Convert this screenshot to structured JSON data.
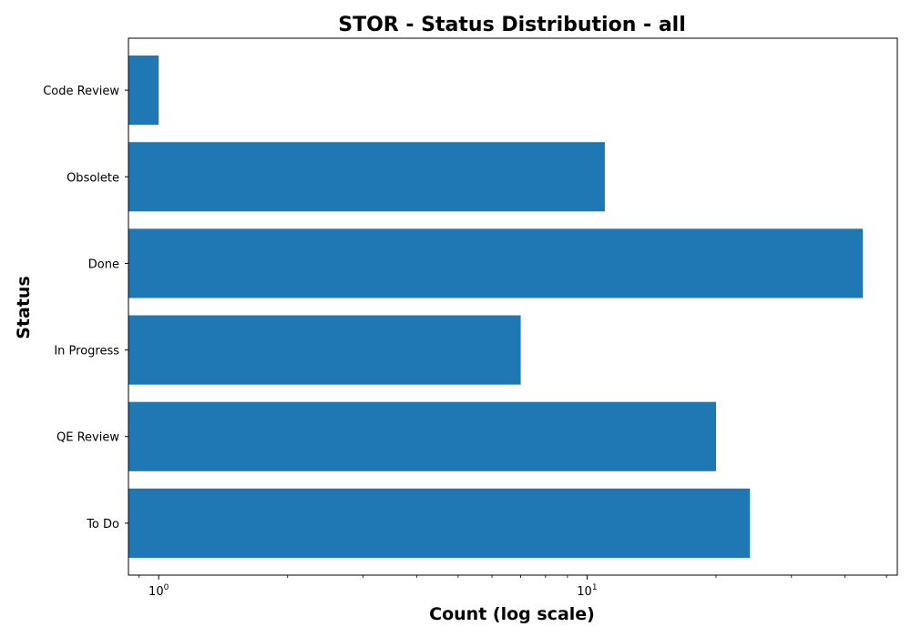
{
  "chart_data": {
    "type": "bar",
    "orientation": "horizontal",
    "title": "STOR - Status Distribution - all",
    "xlabel": "Count (log scale)",
    "ylabel": "Status",
    "x_scale": "log",
    "xlim": [
      0.85,
      53
    ],
    "x_ticks": [
      {
        "base": "10",
        "exp": "0",
        "value": 1
      },
      {
        "base": "10",
        "exp": "1",
        "value": 10
      }
    ],
    "categories": [
      "Code Review",
      "Obsolete",
      "Done",
      "In Progress",
      "QE Review",
      "To Do"
    ],
    "values": [
      1,
      11,
      44,
      7,
      20,
      24
    ],
    "bar_color": "#1f77b4",
    "grid": false,
    "legend": "none"
  }
}
